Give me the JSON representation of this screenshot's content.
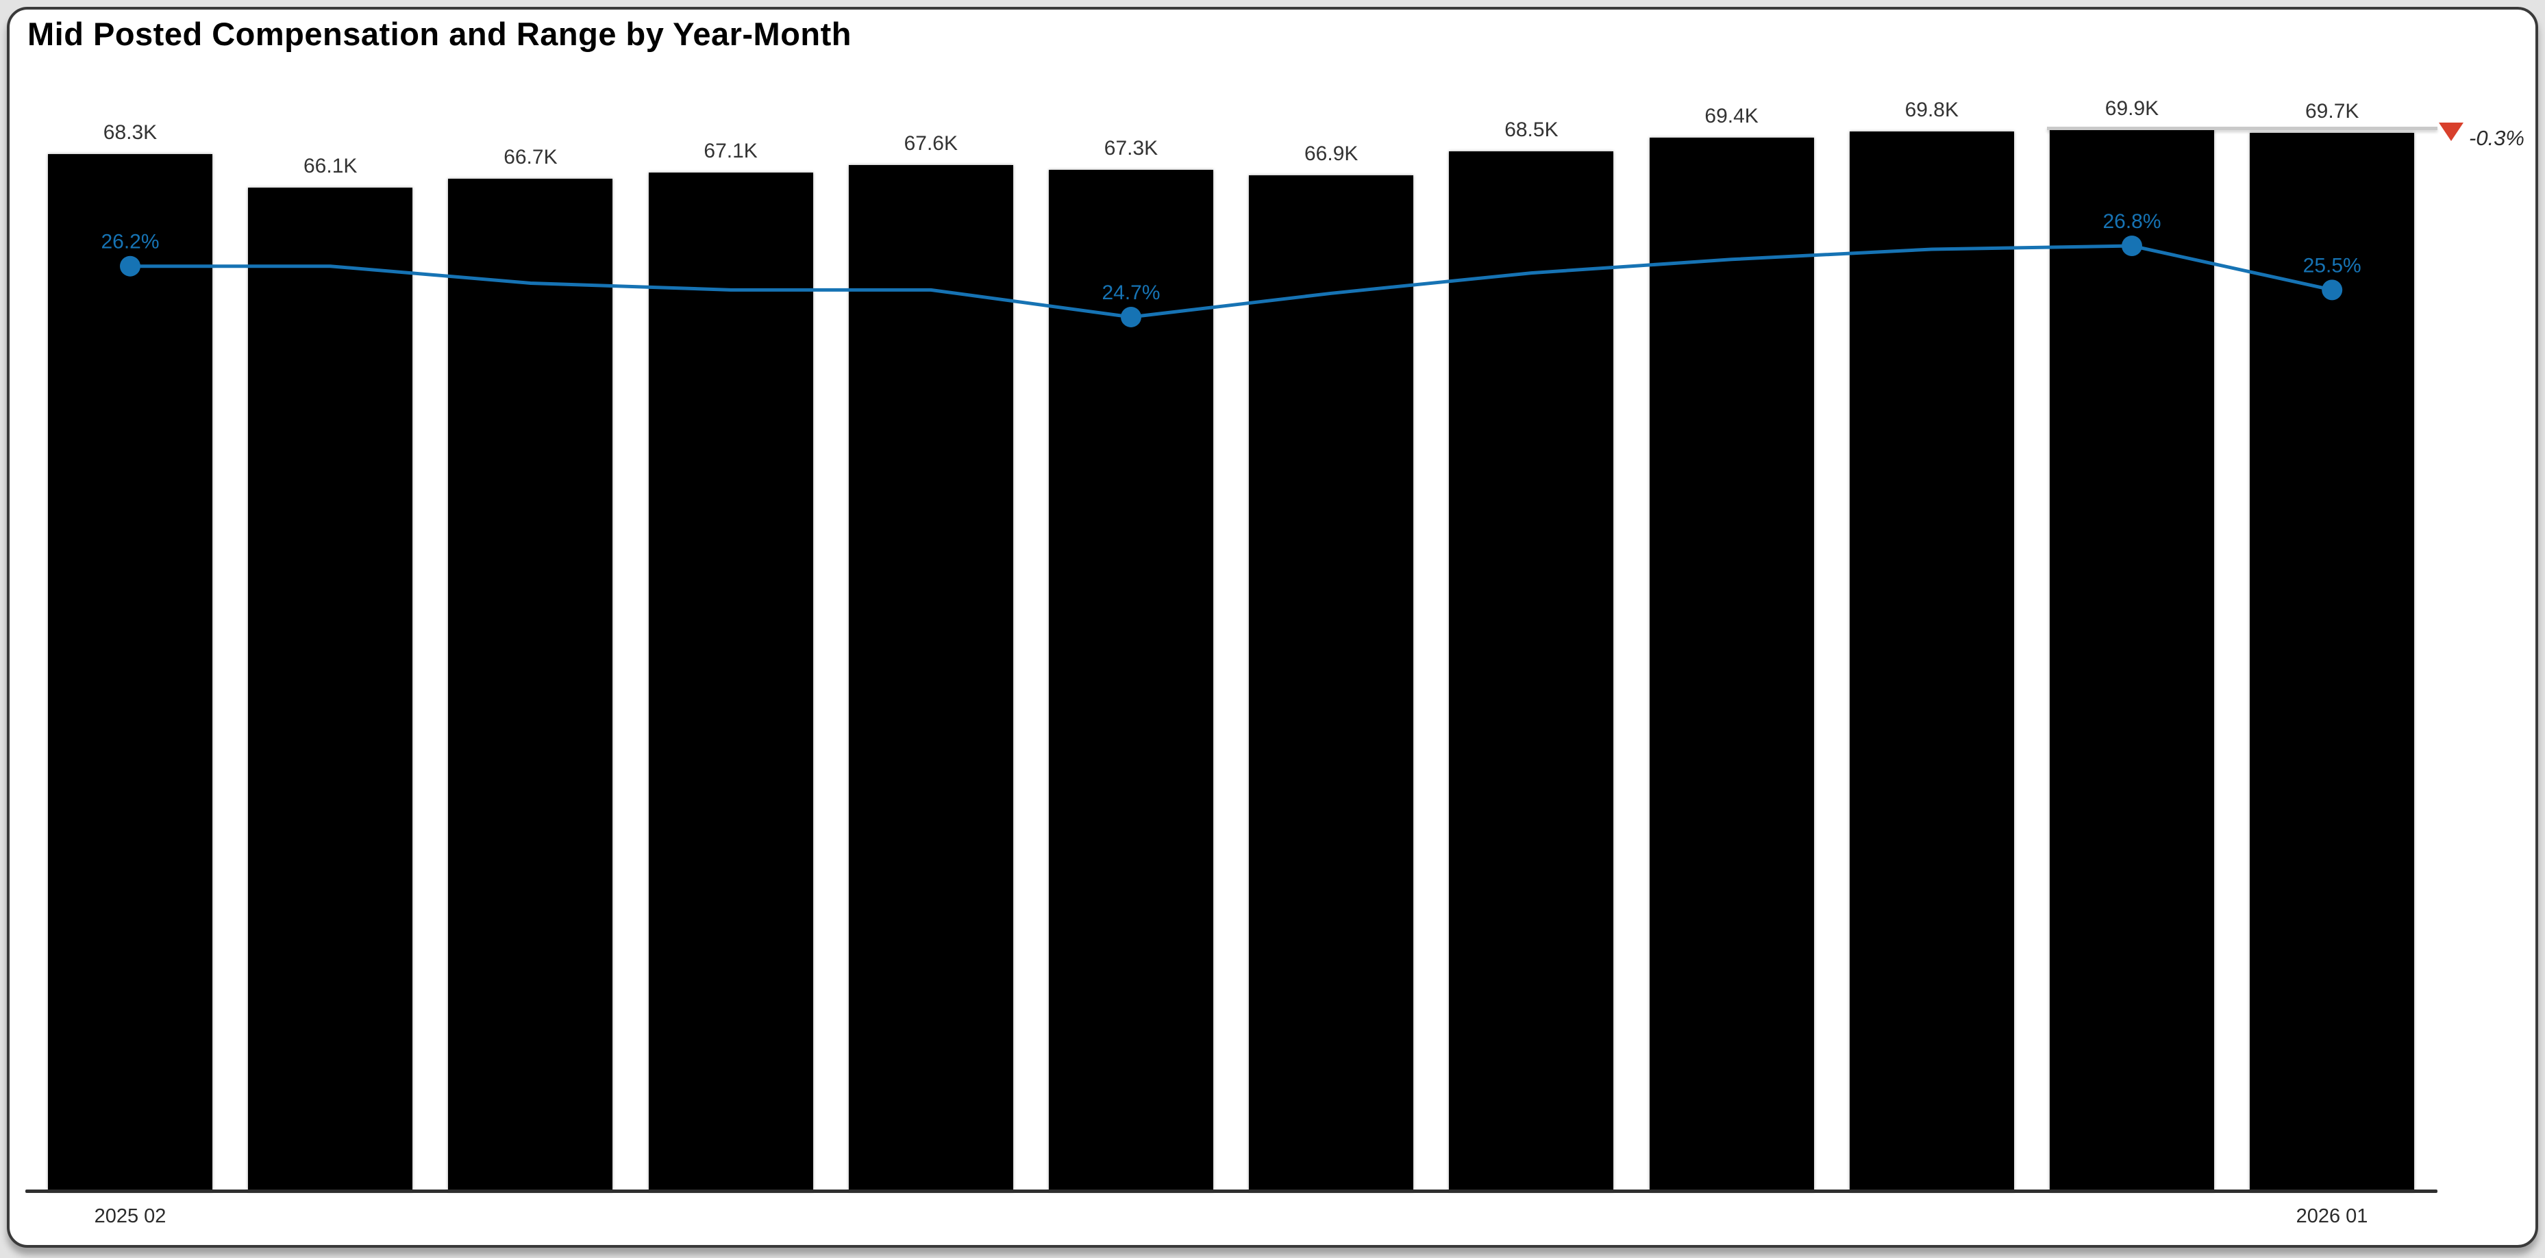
{
  "page": {
    "title": "Mid Posted Compensation and Range by Year-Month"
  },
  "chart_data": {
    "type": "combo-bar-line",
    "title": "Mid Posted Compensation and Range by Year-Month",
    "x_axis": {
      "first_tick": "2025 02",
      "last_tick": "2026 01"
    },
    "ylim_bars": [
      0,
      69.9
    ],
    "bar_series": {
      "color": "#000000",
      "values_thousands": [
        68.3,
        66.1,
        66.7,
        67.1,
        67.6,
        67.3,
        66.9,
        68.5,
        69.4,
        69.8,
        69.9,
        69.7
      ],
      "data_labels": [
        "68.3K",
        "66.1K",
        "66.7K",
        "67.1K",
        "67.6K",
        "67.3K",
        "66.9K",
        "68.5K",
        "69.4K",
        "69.8K",
        "69.9K",
        "69.7K"
      ]
    },
    "line_series": {
      "color": "#1673B4",
      "values_percent": [
        26.2,
        26.2,
        25.7,
        25.5,
        25.5,
        24.7,
        25.4,
        26.0,
        26.4,
        26.7,
        26.8,
        25.5
      ],
      "labeled_points": [
        {
          "index": 0,
          "label": "26.2%"
        },
        {
          "index": 5,
          "label": "24.7%"
        },
        {
          "index": 10,
          "label": "26.8%"
        },
        {
          "index": 11,
          "label": "25.5%"
        }
      ]
    },
    "annotation": {
      "label": "-0.3%",
      "direction": "down",
      "marker_color": "#D8402C",
      "line_color": "#C9C9C9"
    }
  }
}
